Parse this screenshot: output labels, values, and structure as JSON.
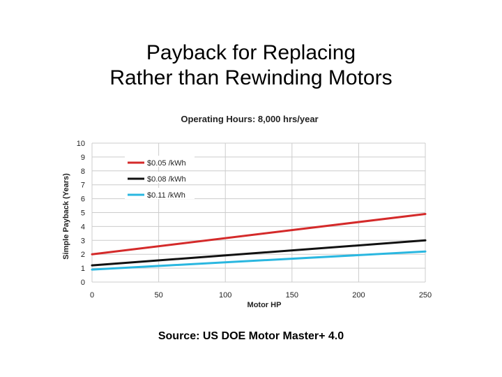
{
  "slide": {
    "title_line1": "Payback for Replacing",
    "title_line2": "Rather than Rewinding Motors",
    "source": "Source: US DOE Motor Master+ 4.0"
  },
  "chart_data": {
    "type": "line",
    "title": "Operating Hours: 8,000 hrs/year",
    "xlabel": "Motor HP",
    "ylabel": "Simple Payback (Years)",
    "xlim": [
      0,
      250
    ],
    "ylim": [
      0,
      10
    ],
    "xticks": [
      0,
      50,
      100,
      150,
      200,
      250
    ],
    "yticks": [
      0,
      1,
      2,
      3,
      4,
      5,
      6,
      7,
      8,
      9,
      10
    ],
    "grid": true,
    "legend_position": "top-left",
    "series": [
      {
        "name": "$0.05 /kWh",
        "color": "#d42a2a",
        "x": [
          0,
          250
        ],
        "y": [
          2.0,
          4.9
        ]
      },
      {
        "name": "$0.08 /kWh",
        "color": "#111111",
        "x": [
          0,
          250
        ],
        "y": [
          1.2,
          3.0
        ]
      },
      {
        "name": "$0.11 /kWh",
        "color": "#2ab7e0",
        "x": [
          0,
          250
        ],
        "y": [
          0.9,
          2.2
        ]
      }
    ]
  }
}
